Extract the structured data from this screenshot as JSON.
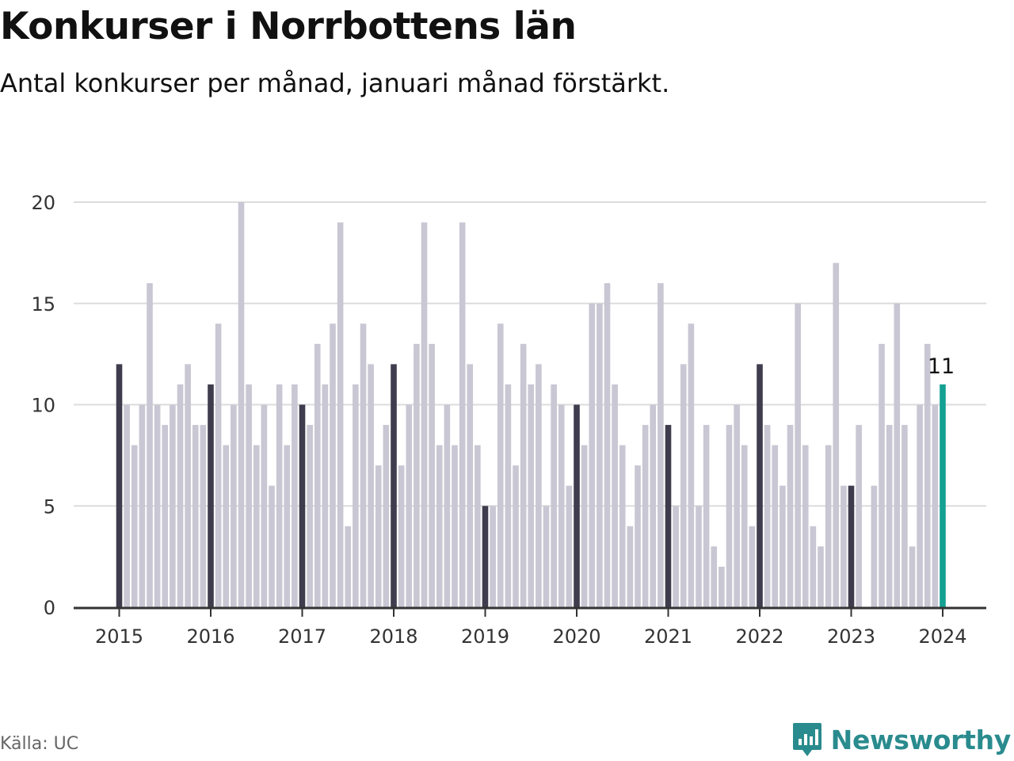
{
  "header": {
    "title": "Konkurser i Norrbottens län",
    "subtitle": "Antal konkurser per månad, januari månad förstärkt."
  },
  "footer": {
    "source": "Källa: UC",
    "brand": "Newsworthy"
  },
  "colors": {
    "regular_bar": "#c8c7d3",
    "january_bar": "#3f3d4d",
    "latest_bar": "#14a092",
    "grid": "#dcdcdc",
    "axis": "#333333",
    "brand": "#2a8b8e"
  },
  "chart_data": {
    "type": "bar",
    "title": "Konkurser i Norrbottens län",
    "subtitle": "Antal konkurser per månad, januari månad förstärkt.",
    "xlabel": "",
    "ylabel": "",
    "ylim": [
      0,
      20
    ],
    "y_ticks": [
      "0",
      "5",
      "10",
      "15",
      "20"
    ],
    "x_ticks": [
      "2015",
      "2016",
      "2017",
      "2018",
      "2019",
      "2020",
      "2021",
      "2022",
      "2023",
      "2024"
    ],
    "grid": true,
    "legend": "none",
    "series": [
      {
        "start": "2015-01",
        "frequency": "monthly",
        "values": [
          12,
          10,
          8,
          10,
          16,
          10,
          9,
          10,
          11,
          12,
          9,
          9,
          11,
          14,
          8,
          10,
          20,
          11,
          8,
          10,
          6,
          11,
          8,
          11,
          10,
          9,
          13,
          11,
          14,
          19,
          4,
          11,
          14,
          12,
          7,
          9,
          12,
          7,
          10,
          13,
          19,
          13,
          8,
          10,
          8,
          19,
          12,
          8,
          5,
          5,
          14,
          11,
          7,
          13,
          11,
          12,
          5,
          11,
          10,
          6,
          10,
          8,
          15,
          15,
          16,
          11,
          8,
          4,
          7,
          9,
          10,
          16,
          9,
          5,
          12,
          14,
          5,
          9,
          3,
          2,
          9,
          10,
          8,
          4,
          12,
          9,
          8,
          6,
          9,
          15,
          8,
          4,
          3,
          8,
          17,
          6,
          6,
          9,
          0,
          6,
          13,
          9,
          15,
          9,
          3,
          10,
          13,
          10,
          11
        ]
      }
    ],
    "highlight": "January bars in dark color; latest month (January 2024) in green",
    "annotations": [
      {
        "label": "11",
        "target": "2024-01"
      }
    ]
  }
}
